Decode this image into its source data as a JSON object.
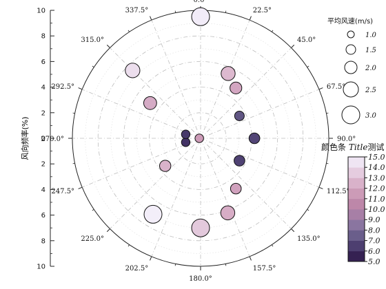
{
  "chart_data": {
    "type": "polar-bubble",
    "ylabel": "风向频率(%)",
    "y_ticks": [
      "10",
      "8",
      "6",
      "4",
      "2",
      "0",
      "2",
      "4",
      "6",
      "8",
      "10"
    ],
    "r_max": 10,
    "angle_labels": [
      "0.0°",
      "22.5°",
      "45.0°",
      "67.5°",
      "90.0°",
      "112.5°",
      "135.0°",
      "157.5°",
      "180.0°",
      "202.5°",
      "225.0°",
      "247.5°",
      "270.0°",
      "292.5°",
      "315.0°",
      "337.5°"
    ],
    "size_legend": {
      "title": "平均风速(m/s)",
      "items": [
        {
          "label": "1.0",
          "value": 1.0
        },
        {
          "label": "1.5",
          "value": 1.5
        },
        {
          "label": "2.0",
          "value": 2.0
        },
        {
          "label": "2.5",
          "value": 2.5
        },
        {
          "label": "3.0",
          "value": 3.0
        }
      ]
    },
    "colorbar": {
      "title_plain": "颜色条 ",
      "title_italic": "Title",
      "title_tail": "测试",
      "min": 5.0,
      "max": 15.0,
      "ticks": [
        "5.0",
        "6.0",
        "7.0",
        "8.0",
        "9.0",
        "10.0",
        "11.0",
        "12.0",
        "13.0",
        "14.0",
        "15.0"
      ],
      "color_stops": [
        "#2a1242",
        "#3f2f62",
        "#5a4f7e",
        "#7a6c98",
        "#9a7ea8",
        "#b47fa4",
        "#c58fad",
        "#d3a6c1",
        "#dfbed3",
        "#eadaea",
        "#f4f0fb"
      ]
    },
    "points": [
      {
        "angle": 0,
        "r": 9.5,
        "speed": 3.0,
        "value": 14.8
      },
      {
        "angle": 315,
        "r": 7.5,
        "speed": 2.4,
        "value": 14.2
      },
      {
        "angle": 23,
        "r": 5.5,
        "speed": 2.3,
        "value": 12.8
      },
      {
        "angle": 35,
        "r": 4.8,
        "speed": 1.9,
        "value": 12.0
      },
      {
        "angle": 305,
        "r": 4.8,
        "speed": 2.1,
        "value": 12.2
      },
      {
        "angle": 60,
        "r": 3.5,
        "speed": 1.5,
        "value": 7.2
      },
      {
        "angle": 90,
        "r": 4.2,
        "speed": 1.7,
        "value": 6.7
      },
      {
        "angle": 120,
        "r": 3.5,
        "speed": 1.7,
        "value": 6.6
      },
      {
        "angle": 145,
        "r": 4.8,
        "speed": 1.7,
        "value": 11.8
      },
      {
        "angle": 160,
        "r": 6.2,
        "speed": 2.3,
        "value": 12.3
      },
      {
        "angle": 180,
        "r": 7.0,
        "speed": 3.0,
        "value": 13.4
      },
      {
        "angle": 212,
        "r": 7.0,
        "speed": 3.0,
        "value": 14.9
      },
      {
        "angle": 232,
        "r": 3.5,
        "speed": 1.8,
        "value": 12.5
      },
      {
        "angle": 255,
        "r": 1.2,
        "speed": 1.3,
        "value": 6.1
      },
      {
        "angle": 285,
        "r": 1.2,
        "speed": 1.3,
        "value": 6.3
      },
      {
        "angle": 270,
        "r": 0.1,
        "speed": 1.3,
        "value": 11.5
      }
    ]
  }
}
